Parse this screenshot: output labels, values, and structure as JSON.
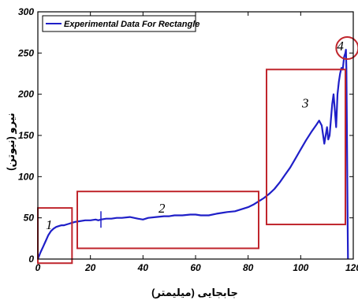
{
  "chart_data": {
    "type": "line",
    "xlabel": "جابجایی (میلیمتر)",
    "ylabel": "نیرو (نیوتن)",
    "xlim": [
      0,
      120
    ],
    "ylim": [
      0,
      300
    ],
    "x_ticks": [
      "0",
      "20",
      "40",
      "60",
      "80",
      "100",
      "120"
    ],
    "y_ticks": [
      "0",
      "50",
      "100",
      "150",
      "200",
      "250",
      "300"
    ],
    "grid": false,
    "legend_position": "top-left",
    "series": [
      {
        "name": "Experimental Data For Rectangle",
        "color": "#1f1fc8",
        "x": [
          0,
          1,
          2,
          3,
          4,
          5,
          6,
          7,
          8,
          9,
          10,
          11,
          12,
          13,
          14,
          16,
          18,
          20,
          22,
          23,
          24,
          26,
          28,
          30,
          32,
          35,
          38,
          40,
          42,
          45,
          48,
          50,
          52,
          55,
          58,
          60,
          62,
          65,
          68,
          70,
          72,
          75,
          78,
          80,
          82,
          84,
          86,
          88,
          90,
          92,
          94,
          96,
          98,
          100,
          102,
          104,
          106,
          107,
          108,
          109,
          110,
          110.5,
          111,
          111.5,
          112,
          112.5,
          113,
          113.5,
          114,
          114.5,
          115,
          115.5,
          116,
          116.5,
          117,
          117.2,
          117.4,
          117.6,
          117.8,
          118
        ],
        "y": [
          0,
          8,
          15,
          22,
          29,
          34,
          37,
          39,
          40,
          41,
          41,
          42,
          43,
          44,
          45,
          46,
          47,
          47,
          48,
          47,
          48,
          49,
          49,
          50,
          50,
          51,
          49,
          48,
          50,
          51,
          52,
          52,
          53,
          53,
          54,
          54,
          53,
          53,
          55,
          56,
          57,
          58,
          61,
          63,
          66,
          70,
          74,
          79,
          85,
          93,
          102,
          111,
          122,
          133,
          144,
          154,
          163,
          168,
          162,
          140,
          160,
          145,
          150,
          170,
          188,
          200,
          180,
          160,
          200,
          215,
          225,
          232,
          230,
          245,
          250,
          254,
          230,
          150,
          60,
          0
        ]
      }
    ],
    "annotations": [
      {
        "label": "1",
        "box": {
          "x": [
            0,
            13
          ],
          "y": [
            -5,
            62
          ]
        }
      },
      {
        "label": "2",
        "box": {
          "x": [
            15,
            84
          ],
          "y": [
            13,
            82
          ]
        }
      },
      {
        "label": "3",
        "box": {
          "x": [
            87,
            117
          ],
          "y": [
            42,
            230
          ]
        }
      },
      {
        "label": "4",
        "circle": {
          "x": 118,
          "y": 256
        }
      }
    ],
    "markers": [
      {
        "x": 24,
        "y_range": [
          38,
          58
        ]
      }
    ]
  }
}
